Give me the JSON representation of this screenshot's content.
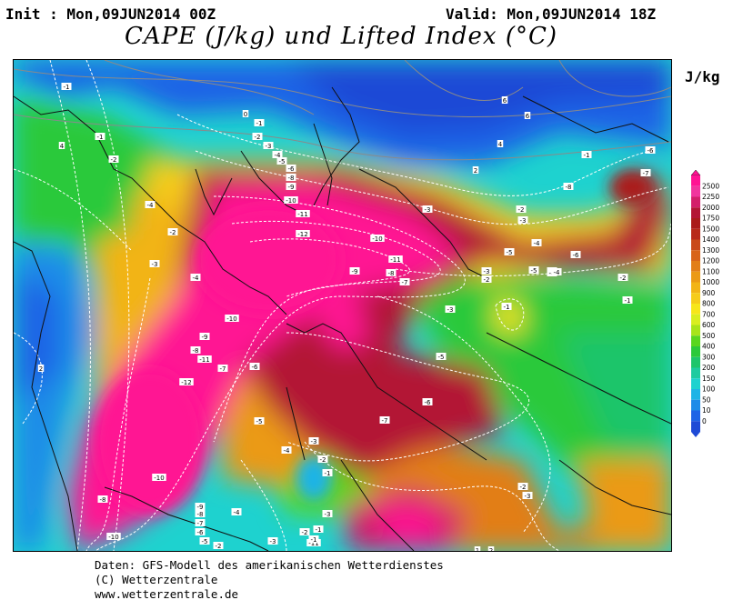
{
  "header": {
    "init": "Init : Mon,09JUN2014 00Z",
    "valid": "Valid: Mon,09JUN2014 18Z",
    "title": "CAPE (J/kg) und Lifted Index (°C)"
  },
  "legend": {
    "unit": "J/kg",
    "levels": [
      "2500",
      "2250",
      "2000",
      "1750",
      "1500",
      "1400",
      "1300",
      "1200",
      "1100",
      "1000",
      "900",
      "800",
      "700",
      "600",
      "500",
      "400",
      "300",
      "200",
      "150",
      "100",
      "50",
      "10",
      "0"
    ],
    "colors": [
      "#ff1493",
      "#f1359e",
      "#d31f6b",
      "#b31535",
      "#aa1a1a",
      "#b82a1a",
      "#c94a1a",
      "#d8641a",
      "#e27e18",
      "#eb9a16",
      "#f2b416",
      "#f6cc1a",
      "#f7e61a",
      "#d9ee20",
      "#a8e41a",
      "#5ad61e",
      "#2cc93a",
      "#1ec56b",
      "#1ecba0",
      "#1ed2cf",
      "#1eb4e6",
      "#1e8ce8",
      "#1e64e6",
      "#1e4ad6"
    ]
  },
  "map": {
    "lifted_index_labels": [
      {
        "v": "-1"
      },
      {
        "v": "-1"
      },
      {
        "v": "-2"
      },
      {
        "v": "-4"
      },
      {
        "v": "-2"
      },
      {
        "v": "-3"
      },
      {
        "v": "-4"
      },
      {
        "v": "2"
      },
      {
        "v": "0"
      },
      {
        "v": "-1"
      },
      {
        "v": "-2"
      },
      {
        "v": "-3"
      },
      {
        "v": "-4"
      },
      {
        "v": "-5"
      },
      {
        "v": "-6"
      },
      {
        "v": "-8"
      },
      {
        "v": "-9"
      },
      {
        "v": "-10"
      },
      {
        "v": "-11"
      },
      {
        "v": "-12"
      },
      {
        "v": "-10"
      },
      {
        "v": "-11"
      },
      {
        "v": "-10"
      },
      {
        "v": "-9"
      },
      {
        "v": "-8"
      },
      {
        "v": "-7"
      },
      {
        "v": "-6"
      },
      {
        "v": "-5"
      },
      {
        "v": "-4"
      },
      {
        "v": "-3"
      },
      {
        "v": "-2"
      },
      {
        "v": "-1"
      },
      {
        "v": "-12"
      },
      {
        "v": "-11"
      },
      {
        "v": "-10"
      },
      {
        "v": "-9"
      },
      {
        "v": "-8"
      },
      {
        "v": "-7"
      },
      {
        "v": "-6"
      },
      {
        "v": "-5"
      },
      {
        "v": "-4"
      },
      {
        "v": "-3"
      },
      {
        "v": "-2"
      },
      {
        "v": "-1"
      },
      {
        "v": "4"
      },
      {
        "v": "6"
      },
      {
        "v": "6"
      },
      {
        "v": "4"
      },
      {
        "v": "2"
      },
      {
        "v": "-3"
      },
      {
        "v": "-5"
      },
      {
        "v": "-6"
      },
      {
        "v": "-4"
      },
      {
        "v": "-3"
      },
      {
        "v": "-2"
      },
      {
        "v": "-1"
      },
      {
        "v": "-8"
      },
      {
        "v": "-7"
      },
      {
        "v": "-6"
      },
      {
        "v": "-9"
      },
      {
        "v": "-8"
      },
      {
        "v": "-7"
      },
      {
        "v": "-3"
      },
      {
        "v": "-2"
      },
      {
        "v": "-1"
      },
      {
        "v": "-5"
      },
      {
        "v": "-6"
      },
      {
        "v": "-4"
      },
      {
        "v": "-1"
      },
      {
        "v": "-2"
      },
      {
        "v": "-3"
      },
      {
        "v": "-4"
      },
      {
        "v": "-5"
      },
      {
        "v": "-6"
      },
      {
        "v": "-7"
      },
      {
        "v": "-8"
      },
      {
        "v": "-10"
      },
      {
        "v": "-11"
      },
      {
        "v": "-3"
      },
      {
        "v": "-2"
      },
      {
        "v": "-1"
      },
      {
        "v": "1"
      },
      {
        "v": "2"
      },
      {
        "v": "-2"
      },
      {
        "v": "-3"
      }
    ]
  },
  "footer": {
    "line1": "Daten: GFS-Modell des amerikanischen Wetterdienstes",
    "line2": "(C) Wetterzentrale",
    "line3": "www.wetterzentrale.de"
  }
}
